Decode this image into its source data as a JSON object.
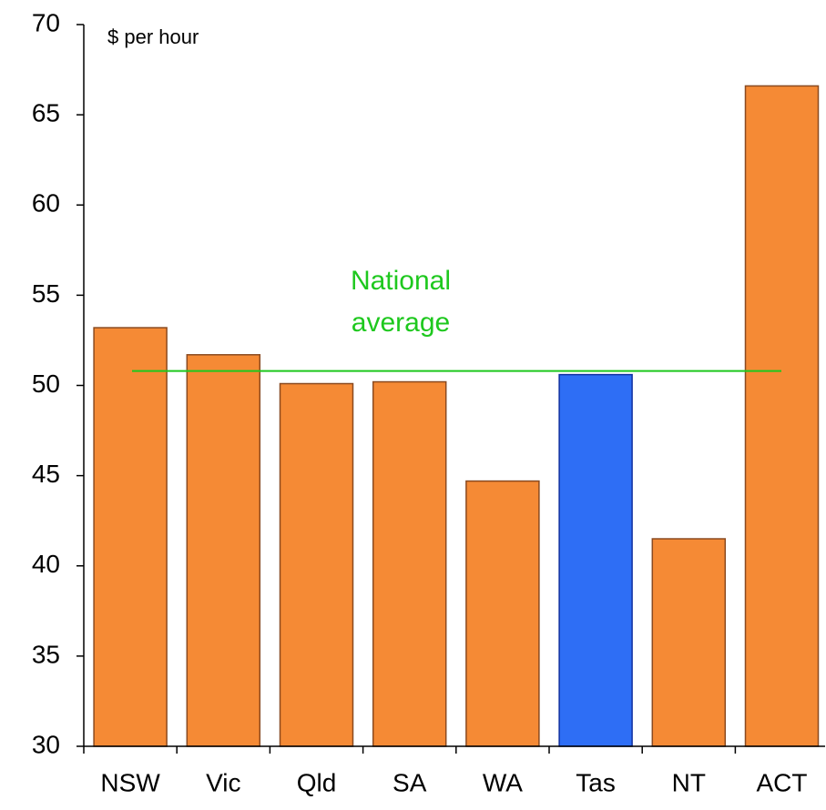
{
  "chart_data": {
    "type": "bar",
    "y_label": "$ per hour",
    "categories": [
      "NSW",
      "Vic",
      "Qld",
      "SA",
      "WA",
      "Tas",
      "NT",
      "ACT"
    ],
    "values": [
      53.2,
      51.7,
      50.1,
      50.2,
      44.7,
      50.6,
      41.5,
      66.6
    ],
    "colors": [
      "#f58a35",
      "#f58a35",
      "#f58a35",
      "#f58a35",
      "#f58a35",
      "#2e6ef5",
      "#f58a35",
      "#f58a35"
    ],
    "ylim": [
      30,
      70
    ],
    "yticks": [
      30,
      35,
      40,
      45,
      50,
      55,
      60,
      65,
      70
    ],
    "reference_line": {
      "value": 50.8,
      "label_lines": [
        "National",
        "average"
      ],
      "color": "#1ec81e"
    }
  }
}
